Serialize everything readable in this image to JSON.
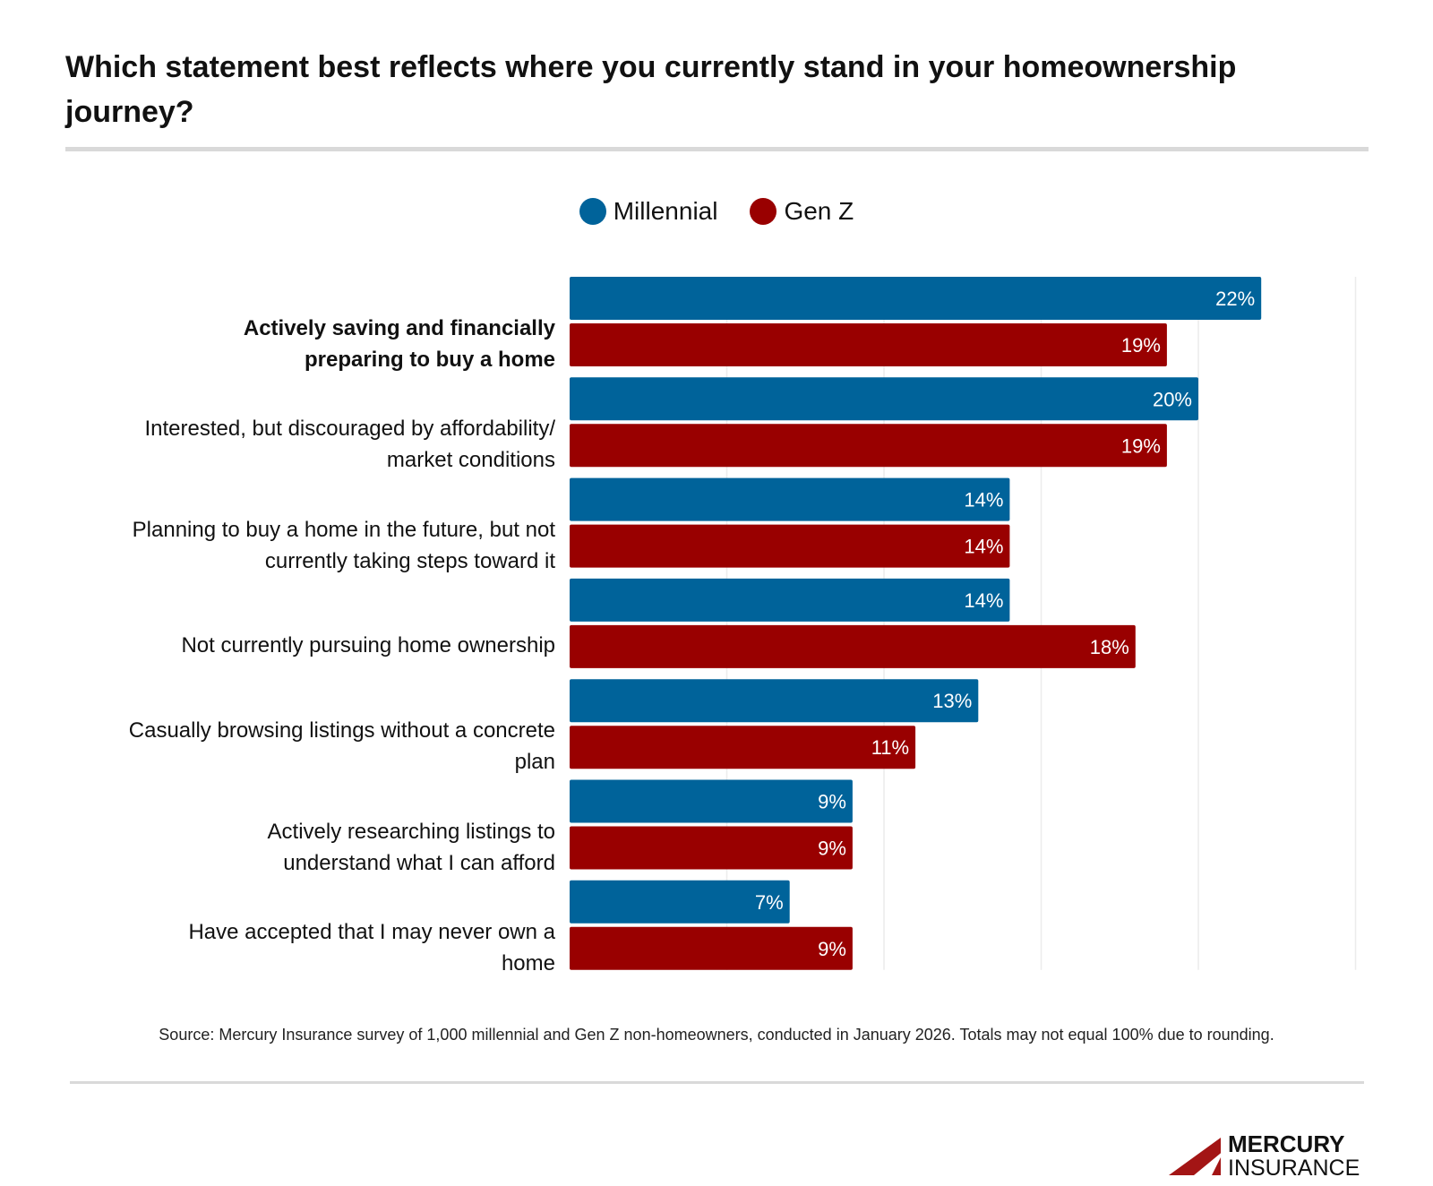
{
  "title": "Which statement best reflects where you currently stand in your homeownership journey?",
  "chart_data": {
    "type": "bar",
    "orientation": "horizontal",
    "title": "Which statement best reflects where you currently stand in your homeownership journey?",
    "categories": [
      "Actively saving and financially preparing to buy a home",
      "Interested, but discouraged by affordability/ market conditions",
      "Planning to buy a home in the future, but not currently taking steps toward it",
      "Not currently pursuing home ownership",
      "Casually browsing listings without a concrete plan",
      "Actively researching listings to understand what I can afford",
      "Have accepted that I may never own a home"
    ],
    "series": [
      {
        "name": "Millennial",
        "color": "#00639a",
        "values": [
          22,
          20,
          14,
          14,
          13,
          9,
          7
        ]
      },
      {
        "name": "Gen Z",
        "color": "#990000",
        "values": [
          19,
          19,
          14,
          18,
          11,
          9,
          9
        ]
      }
    ],
    "value_suffix": "%",
    "xlim": [
      0,
      25
    ],
    "grid_step": 5,
    "grid": true,
    "legend": "top-center",
    "xlabel": "",
    "ylabel": ""
  },
  "source": "Source: Mercury Insurance survey of 1,000 millennial and Gen Z non-homeowners, conducted in January 2026. Totals may not equal 100% due to rounding.",
  "logo": {
    "line1": "MERCURY",
    "line2": "INSURANCE",
    "color": "#a31515"
  }
}
